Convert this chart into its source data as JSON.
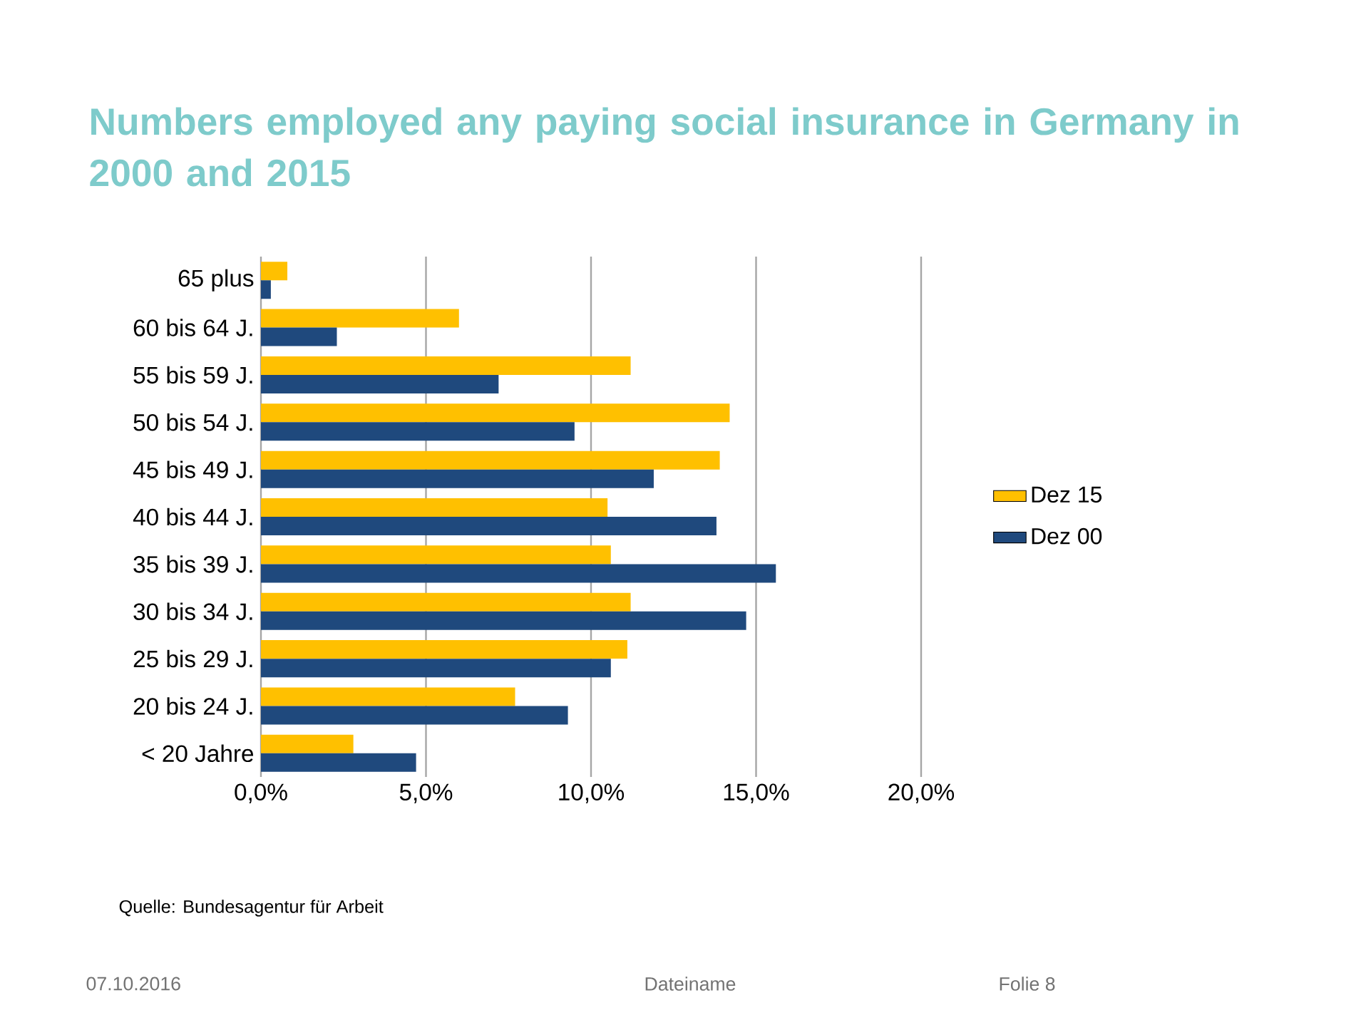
{
  "chart_data": {
    "type": "bar",
    "orientation": "horizontal",
    "title": "Numbers employed any paying social insurance in Germany in 2000 and 2015",
    "categories": [
      "65 plus",
      "60 bis 64 J.",
      "55 bis 59 J.",
      "50 bis 54 J.",
      "45 bis 49 J.",
      "40 bis 44 J.",
      "35 bis 39 J.",
      "30 bis 34 J.",
      "25 bis 29 J.",
      "20 bis 24 J.",
      "< 20 Jahre"
    ],
    "series": [
      {
        "name": "Dez 15",
        "color": "#ffc000",
        "values": [
          0.8,
          6.0,
          11.2,
          14.2,
          13.9,
          10.5,
          10.6,
          11.2,
          11.1,
          7.7,
          2.8
        ]
      },
      {
        "name": "Dez 00",
        "color": "#1f497d",
        "values": [
          0.3,
          2.3,
          7.2,
          9.5,
          11.9,
          13.8,
          15.6,
          14.7,
          10.6,
          9.3,
          4.7
        ]
      }
    ],
    "xlim": [
      0,
      20
    ],
    "xticks": [
      {
        "value": 0,
        "label": "0,0%"
      },
      {
        "value": 5,
        "label": "5,0%"
      },
      {
        "value": 10,
        "label": "10,0%"
      },
      {
        "value": 15,
        "label": "15,0%"
      },
      {
        "value": 20,
        "label": "20,0%"
      }
    ],
    "grid": "x",
    "legend": "right",
    "annotations": [
      "Quelle: Bundesagentur für Arbeit",
      "07.10.2016",
      "Dateiname",
      "Folie 8"
    ]
  }
}
